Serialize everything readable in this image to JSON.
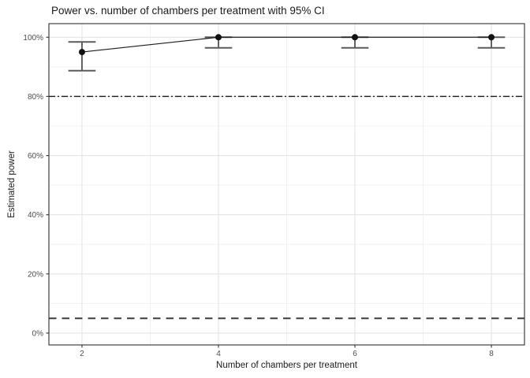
{
  "title": "Power vs. number of chambers per treatment with 95% CI",
  "chart_data": {
    "type": "line",
    "title": "Power vs. number of chambers per treatment with 95% CI",
    "xlabel": "Number of chambers per treatment",
    "ylabel": "Estimated power",
    "x": [
      2,
      4,
      6,
      8
    ],
    "series": [
      {
        "name": "Estimated power",
        "values": [
          0.95,
          1.0,
          1.0,
          1.0
        ],
        "ci_lower": [
          0.887,
          0.964,
          0.964,
          0.964
        ],
        "ci_upper": [
          0.984,
          1.0,
          1.0,
          1.0
        ]
      }
    ],
    "reference_lines": [
      {
        "value": 0.8,
        "style": "dash-dot"
      },
      {
        "value": 0.05,
        "style": "long-dash"
      }
    ],
    "x_ticks": [
      2,
      4,
      6,
      8
    ],
    "x_tick_labels": [
      "2",
      "4",
      "6",
      "8"
    ],
    "x_minor_ticks": [
      3,
      5,
      7
    ],
    "y_ticks": [
      0,
      0.2,
      0.4,
      0.6,
      0.8,
      1.0
    ],
    "y_tick_labels": [
      "0%",
      "20%",
      "40%",
      "60%",
      "80%",
      "100%"
    ],
    "y_minor_ticks": [
      0.1,
      0.3,
      0.5,
      0.7,
      0.9
    ],
    "xlim": [
      1.515,
      8.485
    ],
    "ylim": [
      -0.04,
      1.046
    ],
    "grid": true,
    "legend": "none",
    "error_cap_halfwidth_units": 0.2,
    "colors": {
      "point": "#111111",
      "line": "#1a1a1a",
      "error_bar": "#222222",
      "error_cap": "#5a5a5a",
      "reference_dash_dot": "#1a1a1a",
      "reference_long_dash": "#3d3d3d",
      "grid_major": "#e4e4e4",
      "grid_minor": "#f1f1f1",
      "panel_border": "#2e2e2e",
      "tick_mark": "#333333",
      "axis_text": "#4d4d4d",
      "background": "#ffffff"
    }
  }
}
